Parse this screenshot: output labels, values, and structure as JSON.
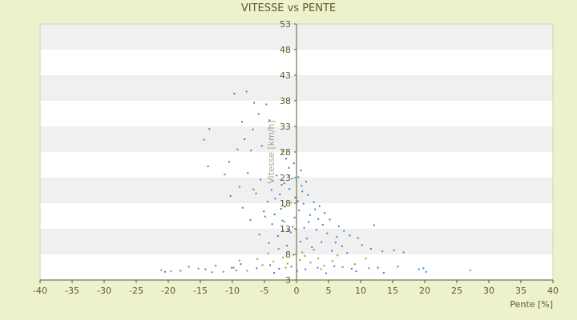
{
  "chart_data": {
    "type": "scatter",
    "title": "VITESSE vs PENTE",
    "xlabel": "Pente [%]",
    "ylabel": "Vitesse [km/h]",
    "xlim": [
      -40,
      40
    ],
    "ylim": [
      3,
      53
    ],
    "x_ticks": [
      -40,
      -35,
      -30,
      -25,
      -20,
      -15,
      -10,
      -5,
      0,
      5,
      10,
      15,
      20,
      25,
      30,
      35,
      40
    ],
    "y_ticks": [
      3,
      8,
      13,
      18,
      23,
      28,
      33,
      38,
      43,
      48,
      53
    ],
    "grid": "alternating horizontal bands",
    "legend": "none",
    "colors": {
      "background": "#eef2cc",
      "plot_band_light": "#ffffff",
      "plot_band_dark": "#f0f0f0",
      "axis": "#5a5a2a",
      "series_blue": "#3d85c6",
      "series_olive": "#a09a2a"
    },
    "series": [
      {
        "color": "#3d85c6",
        "points": [
          [
            -9.7,
            39.4
          ],
          [
            -7.8,
            39.8
          ],
          [
            -6.6,
            37.6
          ],
          [
            -4.7,
            37.3
          ],
          [
            -5.9,
            35.4
          ],
          [
            -4.2,
            34.2
          ],
          [
            -8.5,
            33.9
          ],
          [
            -6.8,
            32.4
          ],
          [
            -13.6,
            32.5
          ],
          [
            -14.4,
            30.4
          ],
          [
            -8.1,
            30.5
          ],
          [
            -5.4,
            29.2
          ],
          [
            -7.1,
            28.3
          ],
          [
            -9.2,
            28.5
          ],
          [
            -10.5,
            26.1
          ],
          [
            -13.8,
            25.2
          ],
          [
            -11.2,
            23.6
          ],
          [
            -7.6,
            23.9
          ],
          [
            -8.9,
            21.2
          ],
          [
            -5.6,
            22.6
          ],
          [
            -3.1,
            23.4
          ],
          [
            -2.3,
            21.6
          ],
          [
            -1.2,
            24.9
          ],
          [
            -0.4,
            25.8
          ],
          [
            -1.6,
            26.7
          ],
          [
            0.3,
            23.1
          ],
          [
            0.7,
            24.4
          ],
          [
            1.5,
            22.2
          ],
          [
            -3.9,
            20.6
          ],
          [
            -10.3,
            19.4
          ],
          [
            -6.3,
            19.9
          ],
          [
            -4.5,
            18.3
          ],
          [
            -2.6,
            19.7
          ],
          [
            -1.1,
            20.8
          ],
          [
            -0.2,
            19.1
          ],
          [
            0.9,
            20.3
          ],
          [
            1.8,
            19.6
          ],
          [
            2.7,
            18.2
          ],
          [
            3.6,
            17.4
          ],
          [
            4.4,
            16.1
          ],
          [
            -8.4,
            17.1
          ],
          [
            -5.1,
            16.4
          ],
          [
            -3.4,
            15.8
          ],
          [
            -1.8,
            17.3
          ],
          [
            0.4,
            16.6
          ],
          [
            2.1,
            15.7
          ],
          [
            5.2,
            14.8
          ],
          [
            6.6,
            13.5
          ],
          [
            7.4,
            12.6
          ],
          [
            -7.2,
            14.7
          ],
          [
            -3.8,
            13.9
          ],
          [
            -2.2,
            14.6
          ],
          [
            -0.6,
            13.4
          ],
          [
            1.2,
            13.2
          ],
          [
            3.1,
            12.8
          ],
          [
            4.8,
            12.1
          ],
          [
            8.3,
            11.7
          ],
          [
            9.6,
            11.2
          ],
          [
            12.1,
            13.7
          ],
          [
            -5.8,
            11.9
          ],
          [
            -2.9,
            11.6
          ],
          [
            -0.9,
            12.3
          ],
          [
            1.6,
            11.1
          ],
          [
            3.9,
            10.4
          ],
          [
            6.1,
            10.3
          ],
          [
            10.2,
            9.8
          ],
          [
            11.6,
            9.1
          ],
          [
            -4.3,
            10.2
          ],
          [
            -1.5,
            9.7
          ],
          [
            0.6,
            10.5
          ],
          [
            2.4,
            9.4
          ],
          [
            5.5,
            8.7
          ],
          [
            7.9,
            8.3
          ],
          [
            13.4,
            8.6
          ],
          [
            15.2,
            8.8
          ],
          [
            16.7,
            8.4
          ],
          [
            -16.8,
            5.6
          ],
          [
            -14.2,
            5.1
          ],
          [
            -12.6,
            5.8
          ],
          [
            -10.1,
            5.4
          ],
          [
            -8.7,
            6.1
          ],
          [
            -6.2,
            5.3
          ],
          [
            -4.1,
            5.9
          ],
          [
            -2.7,
            5.2
          ],
          [
            -0.8,
            5.6
          ],
          [
            1.4,
            5.1
          ],
          [
            3.3,
            5.4
          ],
          [
            5.9,
            5.7
          ],
          [
            8.6,
            5.2
          ],
          [
            12.7,
            5.4
          ],
          [
            15.8,
            5.6
          ],
          [
            19.1,
            5.1
          ],
          [
            19.8,
            5.3
          ],
          [
            -20.5,
            4.6
          ],
          [
            -18.1,
            4.8
          ],
          [
            -13.2,
            4.5
          ],
          [
            -9.4,
            4.9
          ],
          [
            -3.5,
            4.4
          ],
          [
            0.1,
            4.8
          ],
          [
            4.6,
            4.3
          ],
          [
            9.3,
            4.7
          ],
          [
            13.6,
            4.4
          ],
          [
            20.2,
            4.6
          ],
          [
            -1.9,
            21.9
          ],
          [
            0.2,
            18.4
          ],
          [
            -2.4,
            16.9
          ],
          [
            1.9,
            14.3
          ],
          [
            -0.3,
            15.2
          ],
          [
            2.9,
            16.8
          ],
          [
            -1.3,
            12.7
          ],
          [
            0.8,
            21.4
          ],
          [
            -0.7,
            22.8
          ],
          [
            1.1,
            17.9
          ],
          [
            3.4,
            14.9
          ],
          [
            -3.3,
            18.9
          ],
          [
            4.1,
            13.8
          ],
          [
            -4.9,
            15.4
          ],
          [
            6.3,
            11.4
          ],
          [
            -6.7,
            20.7
          ],
          [
            7.1,
            9.6
          ]
        ]
      },
      {
        "color": "#a09a2a",
        "points": [
          [
            -21.1,
            4.9
          ],
          [
            -19.6,
            4.7
          ],
          [
            -15.3,
            5.2
          ],
          [
            -11.4,
            4.6
          ],
          [
            -9.8,
            5.4
          ],
          [
            -7.7,
            4.8
          ],
          [
            -5.3,
            5.9
          ],
          [
            -3.6,
            6.6
          ],
          [
            -2.1,
            7.4
          ],
          [
            -1.4,
            6.2
          ],
          [
            -0.5,
            7.9
          ],
          [
            0.5,
            6.9
          ],
          [
            1.3,
            7.7
          ],
          [
            2.2,
            6.4
          ],
          [
            3.4,
            7.2
          ],
          [
            4.3,
            5.8
          ],
          [
            5.6,
            6.7
          ],
          [
            7.2,
            5.5
          ],
          [
            9.1,
            6.1
          ],
          [
            11.3,
            5.3
          ],
          [
            -6.1,
            7.1
          ],
          [
            -4.4,
            8.2
          ],
          [
            -2.8,
            9.1
          ],
          [
            -1.7,
            5.4
          ],
          [
            0.9,
            8.4
          ],
          [
            2.7,
            8.9
          ],
          [
            3.8,
            5.1
          ],
          [
            6.4,
            7.8
          ],
          [
            -2.2,
            28.2
          ],
          [
            -1.9,
            14.4
          ],
          [
            -0.8,
            18.1
          ],
          [
            -1.2,
            23.4
          ],
          [
            27.1,
            4.9
          ],
          [
            10.8,
            7.2
          ],
          [
            -8.9,
            6.8
          ]
        ]
      }
    ]
  }
}
